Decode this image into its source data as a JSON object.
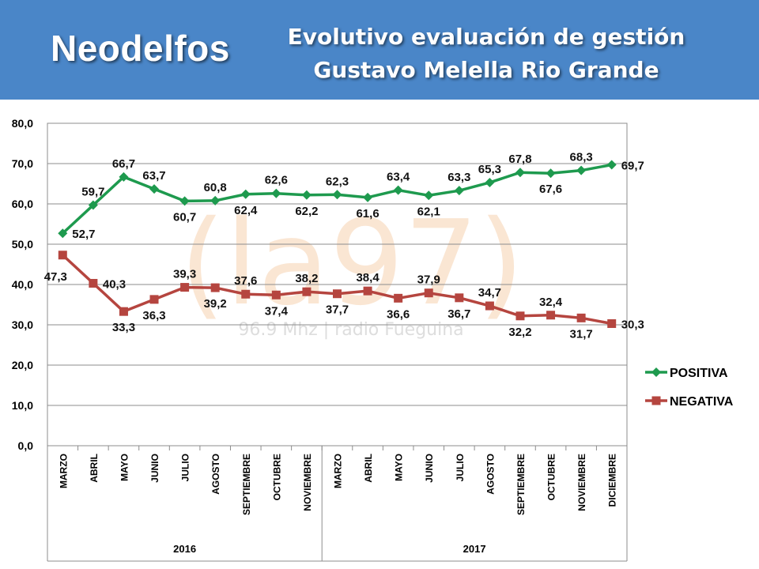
{
  "header": {
    "brand": "Neodelfos",
    "title_line1": "Evolutivo evaluación de gestión",
    "title_line2": "Gustavo Melella Rio Grande",
    "background_color": "#4a86c8"
  },
  "watermark": {
    "logo": "(la97)",
    "text": "96.9 Mhz | radio Fueguina"
  },
  "chart_data": {
    "type": "line",
    "categories": [
      "MARZO",
      "ABRIL",
      "MAYO",
      "JUNIO",
      "JULIO",
      "AGOSTO",
      "SEPTIEMBRE",
      "OCTUBRE",
      "NOVIEMBRE",
      "MARZO",
      "ABRIL",
      "MAYO",
      "JUNIO",
      "JULIO",
      "AGOSTO",
      "SEPTIEMBRE",
      "OCTUBRE",
      "NOVIEMBRE",
      "DICIEMBRE"
    ],
    "year_groups": [
      {
        "label": "2016",
        "count": 9
      },
      {
        "label": "2017",
        "count": 10
      }
    ],
    "series": [
      {
        "name": "POSITIVA",
        "color": "#1e9a4e",
        "marker": "diamond",
        "values": [
          52.7,
          59.7,
          66.7,
          63.7,
          60.7,
          60.8,
          62.4,
          62.6,
          62.2,
          62.3,
          61.6,
          63.4,
          62.1,
          63.3,
          65.3,
          67.8,
          67.6,
          68.3,
          69.7
        ]
      },
      {
        "name": "NEGATIVA",
        "color": "#b5453f",
        "marker": "square",
        "values": [
          47.3,
          40.3,
          33.3,
          36.3,
          39.3,
          39.2,
          37.6,
          37.4,
          38.2,
          37.7,
          38.4,
          36.6,
          37.9,
          36.7,
          34.7,
          32.2,
          32.4,
          31.7,
          30.3
        ]
      }
    ],
    "ylim": [
      0,
      80
    ],
    "yticks": [
      "0,0",
      "10,0",
      "20,0",
      "30,0",
      "40,0",
      "50,0",
      "60,0",
      "70,0",
      "80,0"
    ],
    "grid": true,
    "legend": "right",
    "positiva_labels": [
      "52,7",
      "59,7",
      "66,7",
      "63,7",
      "60,7",
      "60,8",
      "62,4",
      "62,6",
      "62,2",
      "62,3",
      "61,6",
      "63,4",
      "62,1",
      "63,3",
      "65,3",
      "67,8",
      "67,6",
      "68,3",
      "69,7"
    ],
    "negativa_labels": [
      "47,3",
      "40,3",
      "33,3",
      "36,3",
      "39,3",
      "39,2",
      "37,6",
      "37,4",
      "38,2",
      "37,7",
      "38,4",
      "36,6",
      "37,9",
      "36,7",
      "34,7",
      "32,2",
      "32,4",
      "31,7",
      "30,3"
    ],
    "positiva_label_pos": [
      "right",
      "above",
      "above",
      "above",
      "below",
      "above",
      "below",
      "above",
      "below",
      "above",
      "below",
      "above",
      "below",
      "above",
      "above",
      "above",
      "below",
      "above",
      "right"
    ],
    "negativa_label_pos": [
      "left",
      "right",
      "below",
      "below",
      "above",
      "below",
      "above",
      "below",
      "above",
      "below",
      "above",
      "below",
      "above",
      "below",
      "above",
      "below",
      "above",
      "below",
      "right"
    ]
  }
}
